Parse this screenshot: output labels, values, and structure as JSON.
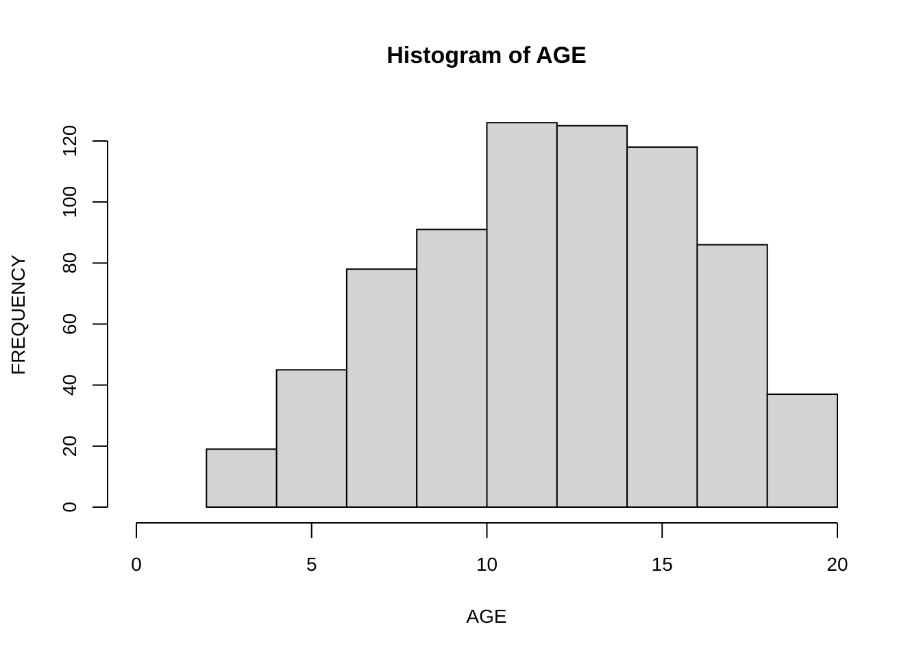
{
  "chart_data": {
    "type": "bar",
    "title": "Histogram of AGE",
    "xlabel": "AGE",
    "ylabel": "FREQUENCY",
    "bins": [
      {
        "start": 0,
        "end": 2,
        "count": 0
      },
      {
        "start": 2,
        "end": 4,
        "count": 19
      },
      {
        "start": 4,
        "end": 6,
        "count": 45
      },
      {
        "start": 6,
        "end": 8,
        "count": 78
      },
      {
        "start": 8,
        "end": 10,
        "count": 91
      },
      {
        "start": 10,
        "end": 12,
        "count": 126
      },
      {
        "start": 12,
        "end": 14,
        "count": 125
      },
      {
        "start": 14,
        "end": 16,
        "count": 118
      },
      {
        "start": 16,
        "end": 18,
        "count": 86
      },
      {
        "start": 18,
        "end": 20,
        "count": 37
      }
    ],
    "xlim": [
      0,
      20
    ],
    "ylim": [
      0,
      120
    ],
    "xticks": [
      0,
      5,
      10,
      15,
      20
    ],
    "yticks": [
      0,
      20,
      40,
      60,
      80,
      100,
      120
    ],
    "grid": false,
    "bar_fill": "#d3d3d3",
    "bar_stroke": "#000000"
  }
}
